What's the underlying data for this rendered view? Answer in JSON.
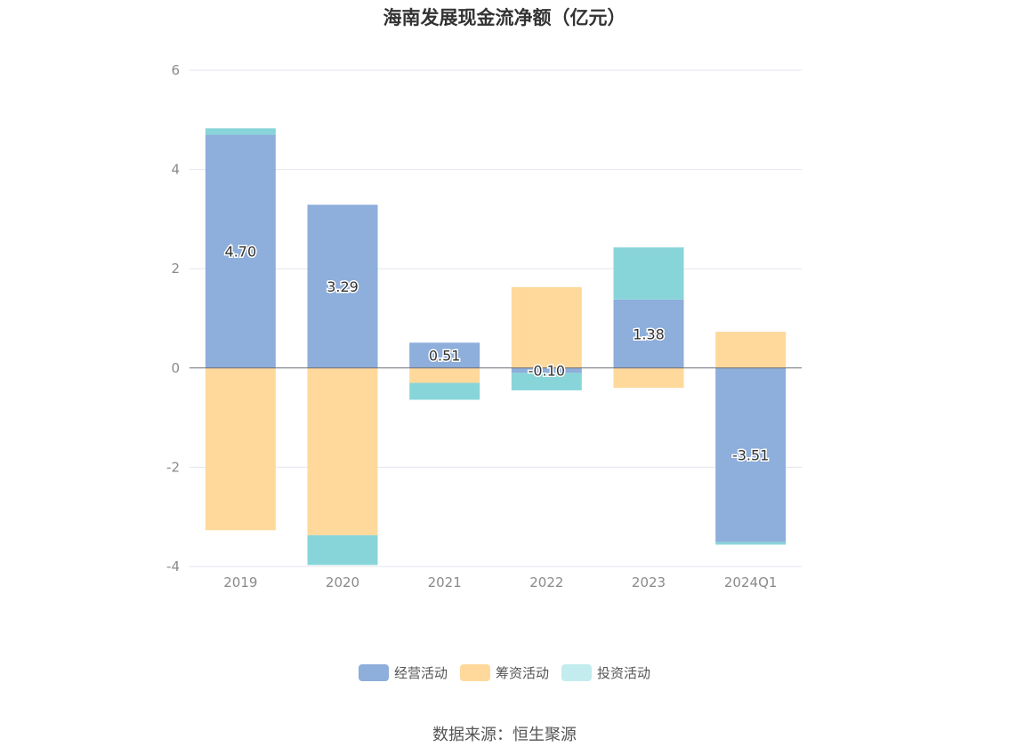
{
  "chart_data": {
    "type": "bar",
    "stacked": true,
    "title": "海南发展现金流净额（亿元）",
    "categories": [
      "2019",
      "2020",
      "2021",
      "2022",
      "2023",
      "2024Q1"
    ],
    "series": [
      {
        "name": "经营活动",
        "color": "#8eaedb",
        "values": [
          4.7,
          3.29,
          0.51,
          -0.1,
          1.38,
          -3.51
        ],
        "labels": [
          "4.70",
          "3.29",
          "0.51",
          "-0.10",
          "1.38",
          "-3.51"
        ]
      },
      {
        "name": "筹资活动",
        "color": "#fed99b",
        "values": [
          -3.27,
          -3.37,
          -0.3,
          1.63,
          -0.4,
          0.73
        ]
      },
      {
        "name": "投资活动",
        "color": "#88d5d9",
        "values": [
          0.13,
          -0.6,
          -0.34,
          -0.35,
          1.05,
          -0.05
        ]
      }
    ],
    "ylim": [
      -4,
      6
    ],
    "yticks": [
      -4,
      -2,
      0,
      2,
      4,
      6
    ],
    "grid": true,
    "legend_position": "bottom"
  },
  "legend": {
    "items": [
      {
        "label": "经营活动",
        "color": "#8eaedb"
      },
      {
        "label": "筹资活动",
        "color": "#fed99b"
      },
      {
        "label": "投资活动",
        "color": "#c2ecee"
      }
    ]
  },
  "source": "数据来源：恒生聚源"
}
